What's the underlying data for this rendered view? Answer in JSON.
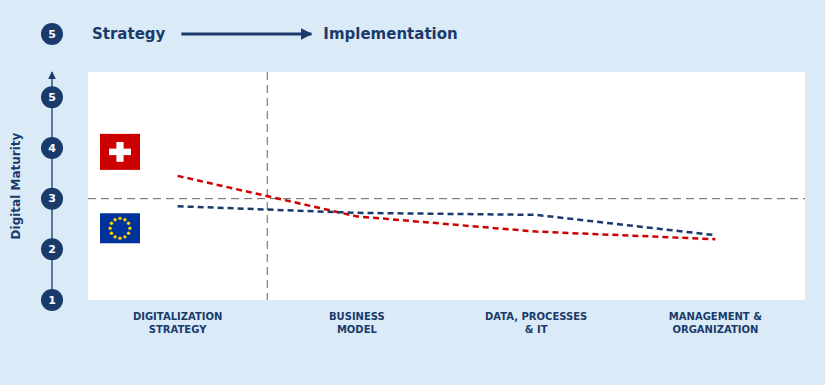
{
  "chart_data": {
    "type": "line",
    "ylabel": "Digital Maturity",
    "annotations": [
      "Strategy",
      "Implementation"
    ],
    "categories": [
      "DIGITALIZATION\nSTRATEGY",
      "BUSINESS\nMODEL",
      "DATA, PROCESSES\n& IT",
      "MANAGEMENT &\nORGANIZATION"
    ],
    "series": [
      {
        "color": "#cc0000",
        "line_style": "dashed",
        "values": [
          3.45,
          2.65,
          2.35,
          2.2
        ]
      },
      {
        "color": "#1a3a6b",
        "line_style": "dashed",
        "values": [
          2.85,
          2.72,
          2.68,
          2.28
        ]
      }
    ],
    "ylim": [
      1.0,
      5.5
    ],
    "yticks": [
      1,
      2,
      3,
      4,
      5
    ],
    "hline_y": 3.0,
    "vline_x": 0.5,
    "grid": false
  }
}
